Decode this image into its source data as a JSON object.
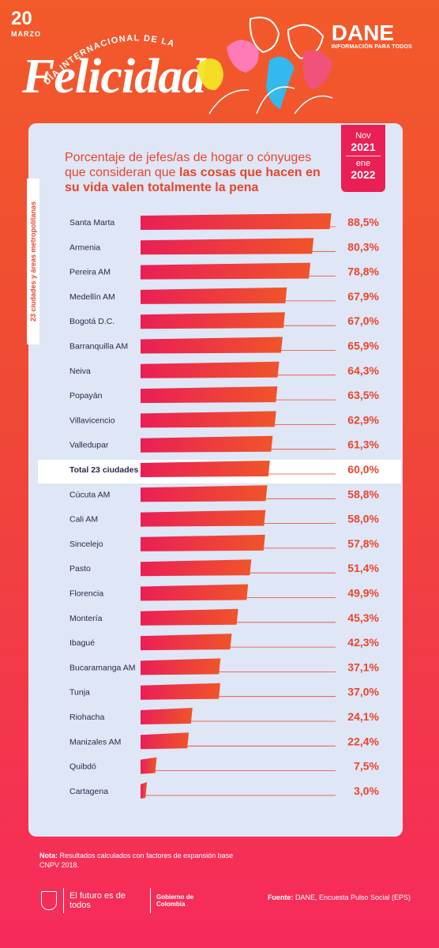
{
  "header": {
    "date_number": "20",
    "date_month": "MARZO",
    "arc_title": "DÍA INTERNACIONAL DE LA",
    "main_title": "Felicidad",
    "brand": "DANE",
    "brand_tagline": "INFORMACIÓN PARA TODOS"
  },
  "subtitle": {
    "text_regular": "Porcentaje de jefes/as de hogar o cónyuges que consideran que ",
    "text_bold": "las cosas que hacen en su vida valen totalmente la pena"
  },
  "period": {
    "from_month": "Nov",
    "from_year": "2021",
    "to_month": "ene",
    "to_year": "2022"
  },
  "side_label": "23 ciudades y áreas metropolitanas",
  "chart_data": {
    "type": "bar",
    "orientation": "horizontal",
    "categories": [
      "Santa Marta",
      "Armenia",
      "Pereira AM",
      "Medellín AM",
      "Bogotá D.C.",
      "Barranquilla AM",
      "Neiva",
      "Popayán",
      "Villavicencio",
      "Valledupar",
      "Total 23 ciudades",
      "Cúcuta AM",
      "Cali AM",
      "Sincelejo",
      "Pasto",
      "Florencia",
      "Montería",
      "Ibagué",
      "Bucaramanga AM",
      "Tunja",
      "Riohacha",
      "Manizales AM",
      "Quibdó",
      "Cartagena"
    ],
    "values": [
      88.5,
      80.3,
      78.8,
      67.9,
      67.0,
      65.9,
      64.3,
      63.5,
      62.9,
      61.3,
      60.0,
      58.8,
      58.0,
      57.8,
      51.4,
      49.9,
      45.3,
      42.3,
      37.1,
      37.0,
      24.1,
      22.4,
      7.5,
      3.0
    ],
    "labels": [
      "88,5%",
      "80,3%",
      "78,8%",
      "67,9%",
      "67,0%",
      "65,9%",
      "64,3%",
      "63,5%",
      "62,9%",
      "61,3%",
      "60,0%",
      "58,8%",
      "58,0%",
      "57,8%",
      "51,4%",
      "49,9%",
      "45,3%",
      "42,3%",
      "37,1%",
      "37,0%",
      "24,1%",
      "22,4%",
      "7,5%",
      "3,0%"
    ],
    "highlighted_category": "Total 23 ciudades",
    "xlim": [
      0,
      100
    ],
    "bar_gradient": [
      "#ea1f55",
      "#f0542a"
    ],
    "label_color": "#e8462e"
  },
  "footer": {
    "note_label": "Nota:",
    "note_text": " Resultados calculados con factores de expansión base CNPV 2018.",
    "motto": "El futuro es de todos",
    "gov": "Gobierno de Colombia",
    "source_label": "Fuente:",
    "source_text": " DANE, Encuesta Pulso Social (EPS)"
  },
  "icons": [
    "colombia-shield-icon"
  ]
}
